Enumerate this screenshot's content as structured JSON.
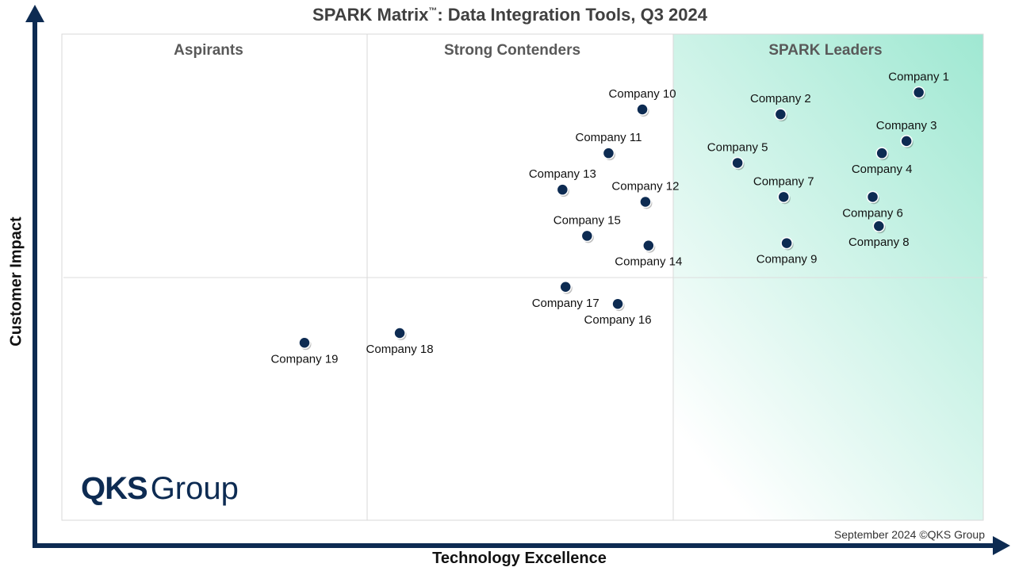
{
  "chart_data": {
    "type": "scatter",
    "title": "SPARK Matrix",
    "title_tm": "™",
    "title_rest": ": Data Integration Tools, Q3 2024",
    "xlabel": "Technology Excellence",
    "ylabel": "Customer Impact",
    "xlim": [
      0,
      3
    ],
    "ylim": [
      0,
      2
    ],
    "grid": false,
    "quadrants": [
      "Aspirants",
      "Strong Contenders",
      "SPARK Leaders"
    ],
    "points": [
      {
        "name": "Company 1",
        "x": 2.79,
        "y": 1.76
      },
      {
        "name": "Company 2",
        "x": 2.34,
        "y": 1.67
      },
      {
        "name": "Company 3",
        "x": 2.75,
        "y": 1.56
      },
      {
        "name": "Company 4",
        "x": 2.67,
        "y": 1.51
      },
      {
        "name": "Company 5",
        "x": 2.2,
        "y": 1.47
      },
      {
        "name": "Company 6",
        "x": 2.64,
        "y": 1.33
      },
      {
        "name": "Company 7",
        "x": 2.35,
        "y": 1.33
      },
      {
        "name": "Company 8",
        "x": 2.66,
        "y": 1.21
      },
      {
        "name": "Company 9",
        "x": 2.36,
        "y": 1.14
      },
      {
        "name": "Company 10",
        "x": 1.89,
        "y": 1.69
      },
      {
        "name": "Company 11",
        "x": 1.78,
        "y": 1.51
      },
      {
        "name": "Company 12",
        "x": 1.9,
        "y": 1.31
      },
      {
        "name": "Company 13",
        "x": 1.63,
        "y": 1.36
      },
      {
        "name": "Company 14",
        "x": 1.91,
        "y": 1.13
      },
      {
        "name": "Company 15",
        "x": 1.71,
        "y": 1.17
      },
      {
        "name": "Company 16",
        "x": 1.81,
        "y": 0.89
      },
      {
        "name": "Company 17",
        "x": 1.64,
        "y": 0.96
      },
      {
        "name": "Company 18",
        "x": 1.1,
        "y": 0.77
      },
      {
        "name": "Company 19",
        "x": 0.79,
        "y": 0.73
      }
    ]
  },
  "footer": "September 2024 ©QKS Group",
  "logo": {
    "qks": "QKS",
    "group": "Group"
  },
  "colors": {
    "marker": "#0d2b52",
    "axis": "#0d2b52",
    "leaders_gradient": "#9fe8d2",
    "title": "#404040",
    "quadrant_label": "#595959"
  }
}
